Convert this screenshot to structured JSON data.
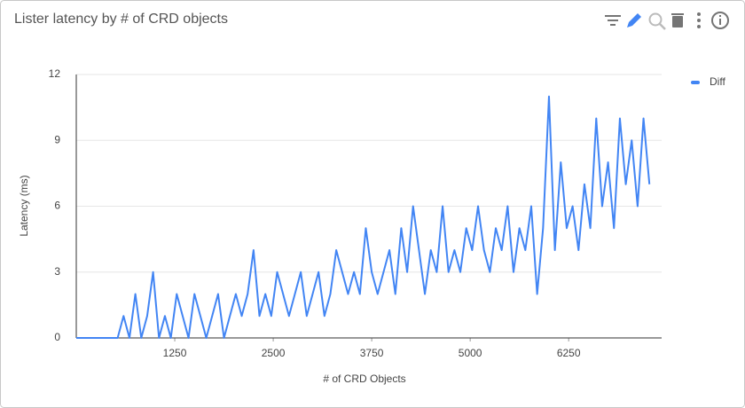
{
  "chart_data": {
    "type": "line",
    "title": "Lister latency by # of CRD objects",
    "x_label": "# of CRD Objects",
    "y_label": "Latency (ms)",
    "x": [
      0,
      75,
      150,
      225,
      300,
      375,
      450,
      525,
      600,
      675,
      750,
      825,
      900,
      975,
      1050,
      1125,
      1200,
      1275,
      1350,
      1425,
      1500,
      1575,
      1650,
      1725,
      1800,
      1875,
      1950,
      2025,
      2100,
      2175,
      2250,
      2325,
      2400,
      2475,
      2550,
      2625,
      2700,
      2775,
      2850,
      2925,
      3000,
      3075,
      3150,
      3225,
      3300,
      3375,
      3450,
      3525,
      3600,
      3675,
      3750,
      3825,
      3900,
      3975,
      4050,
      4125,
      4200,
      4275,
      4350,
      4425,
      4500,
      4575,
      4650,
      4725,
      4800,
      4875,
      4950,
      5025,
      5100,
      5175,
      5250,
      5325,
      5400,
      5475,
      5550,
      5625,
      5700,
      5775,
      5850,
      5925,
      6000,
      6075,
      6150,
      6225,
      6300,
      6375,
      6450,
      6525,
      6600,
      6675,
      6750,
      6825,
      6900,
      6975,
      7050,
      7125,
      7200,
      7275
    ],
    "series": [
      {
        "name": "Diff",
        "color": "#4285f4",
        "values": [
          0,
          0,
          0,
          0,
          0,
          0,
          0,
          0,
          1,
          0,
          2,
          0,
          1,
          3,
          0,
          1,
          0,
          2,
          1,
          0,
          2,
          1,
          0,
          1,
          2,
          0,
          1,
          2,
          1,
          2,
          4,
          1,
          2,
          1,
          3,
          2,
          1,
          2,
          3,
          1,
          2,
          3,
          1,
          2,
          4,
          3,
          2,
          3,
          2,
          5,
          3,
          2,
          3,
          4,
          2,
          5,
          3,
          6,
          4,
          2,
          4,
          3,
          6,
          3,
          4,
          3,
          5,
          4,
          6,
          4,
          3,
          5,
          4,
          6,
          3,
          5,
          4,
          6,
          2,
          5,
          11,
          4,
          8,
          5,
          6,
          4,
          7,
          5,
          10,
          6,
          8,
          5,
          10,
          7,
          9,
          6,
          10,
          7
        ]
      }
    ],
    "xlim": [
      0,
      7430
    ],
    "ylim": [
      0,
      12
    ],
    "xticks": [
      1250,
      2500,
      3750,
      5000,
      6250
    ],
    "yticks": [
      0,
      3,
      6,
      9,
      12
    ],
    "grid": true,
    "legend": "right"
  }
}
